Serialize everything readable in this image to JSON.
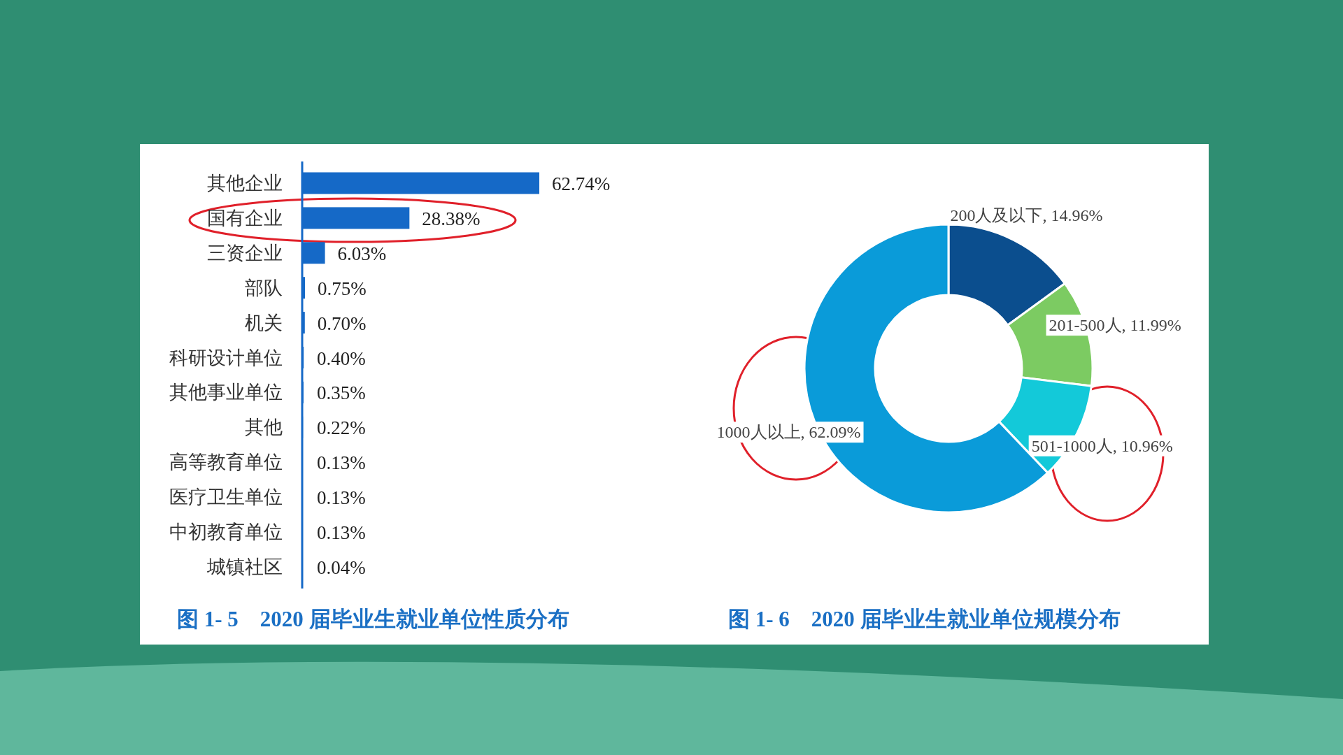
{
  "chart_data": [
    {
      "type": "bar",
      "orientation": "horizontal",
      "title": "图 1- 5　2020 届毕业生就业单位性质分布",
      "color": "#1569c7",
      "categories": [
        "其他企业",
        "国有企业",
        "三资企业",
        "部队",
        "机关",
        "科研设计单位",
        "其他事业单位",
        "其他",
        "高等教育单位",
        "医疗卫生单位",
        "中初教育单位",
        "城镇社区"
      ],
      "values": [
        62.74,
        28.38,
        6.03,
        0.75,
        0.7,
        0.4,
        0.35,
        0.22,
        0.13,
        0.13,
        0.13,
        0.04
      ],
      "value_labels": [
        "62.74%",
        "28.38%",
        "6.03%",
        "0.75%",
        "0.70%",
        "0.40%",
        "0.35%",
        "0.22%",
        "0.13%",
        "0.13%",
        "0.13%",
        "0.04%"
      ]
    },
    {
      "type": "donut",
      "title": "图 1- 6　2020 届毕业生就业单位规模分布",
      "categories": [
        "200人及以下",
        "201-500人",
        "501-1000人",
        "1000人以上"
      ],
      "values": [
        14.96,
        11.99,
        10.96,
        62.09
      ],
      "colors": [
        "#0b4e8e",
        "#7ccb62",
        "#13c9d9",
        "#0a9bd9"
      ],
      "value_labels": [
        "14.96%",
        "11.99%",
        "10.96%",
        "62.09%"
      ]
    }
  ]
}
